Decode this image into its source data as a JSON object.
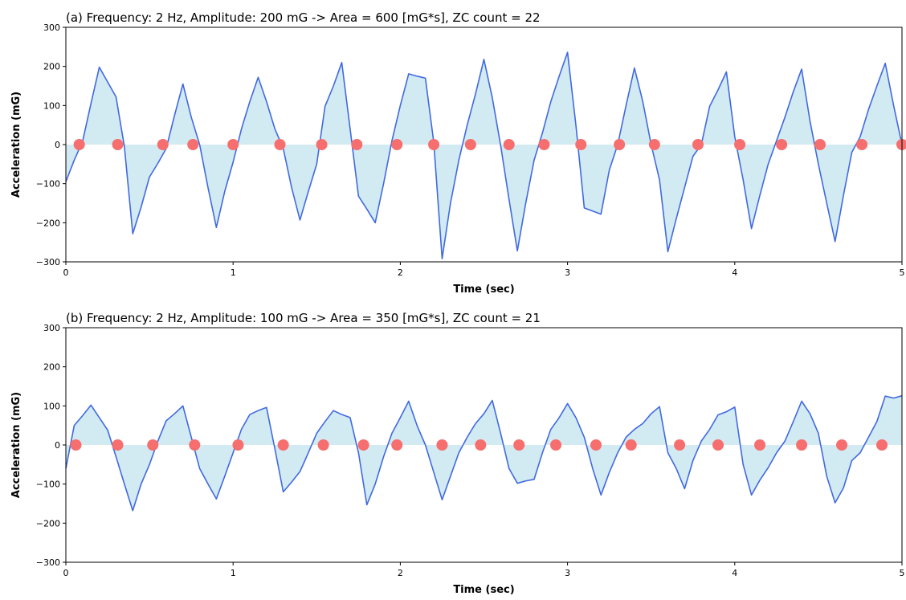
{
  "chart_data": [
    {
      "type": "line",
      "title": "(a) Frequency: 2 Hz, Amplitude: 200 mG -> Area = 600 [mG*s], ZC count = 22",
      "xlabel": "Time (sec)",
      "ylabel": "Acceleration (mG)",
      "xlim": [
        0,
        5
      ],
      "ylim": [
        -300,
        300
      ],
      "xticks": [
        "0",
        "1",
        "2",
        "3",
        "4",
        "5"
      ],
      "yticks": [
        "300",
        "200",
        "100",
        "0",
        "−100",
        "−200",
        "−300"
      ],
      "line_color": "#4169e1",
      "fill_color": "#add8e6",
      "marker_color": "#f76e6e",
      "x": [
        0,
        0.05,
        0.1,
        0.15,
        0.2,
        0.25,
        0.3,
        0.35,
        0.4,
        0.45,
        0.5,
        0.55,
        0.6,
        0.65,
        0.7,
        0.75,
        0.8,
        0.85,
        0.9,
        0.95,
        1.0,
        1.05,
        1.1,
        1.15,
        1.2,
        1.25,
        1.3,
        1.35,
        1.4,
        1.45,
        1.5,
        1.55,
        1.6,
        1.65,
        1.7,
        1.75,
        1.8,
        1.85,
        1.9,
        1.95,
        2.0,
        2.05,
        2.1,
        2.15,
        2.2,
        2.25,
        2.3,
        2.35,
        2.4,
        2.45,
        2.5,
        2.55,
        2.6,
        2.65,
        2.7,
        2.75,
        2.8,
        2.85,
        2.9,
        2.95,
        3.0,
        3.05,
        3.1,
        3.15,
        3.2,
        3.25,
        3.3,
        3.35,
        3.4,
        3.45,
        3.5,
        3.55,
        3.6,
        3.65,
        3.7,
        3.75,
        3.8,
        3.85,
        3.9,
        3.95,
        4.0,
        4.05,
        4.1,
        4.15,
        4.2,
        4.25,
        4.3,
        4.35,
        4.4,
        4.45,
        4.5,
        4.55,
        4.6,
        4.65,
        4.7,
        4.75,
        4.8,
        4.85,
        4.9,
        4.95,
        5.0
      ],
      "values": [
        -95,
        -40,
        8,
        105,
        198,
        160,
        122,
        -5,
        -228,
        -160,
        -83,
        -48,
        -10,
        75,
        155,
        70,
        0,
        -110,
        -212,
        -120,
        -45,
        40,
        110,
        172,
        110,
        40,
        -10,
        -110,
        -193,
        -120,
        -50,
        98,
        150,
        210,
        40,
        -132,
        -165,
        -200,
        -100,
        10,
        100,
        181,
        175,
        170,
        6,
        -292,
        -150,
        -40,
        50,
        130,
        218,
        120,
        -2,
        -140,
        -272,
        -150,
        -40,
        30,
        110,
        175,
        236,
        50,
        -162,
        -170,
        -178,
        -65,
        0,
        100,
        196,
        110,
        0,
        -90,
        -274,
        -190,
        -110,
        -30,
        0,
        98,
        140,
        186,
        20,
        -90,
        -215,
        -130,
        -50,
        10,
        70,
        135,
        193,
        60,
        -50,
        -150,
        -248,
        -130,
        -20,
        20,
        90,
        150,
        208,
        100,
        0
      ],
      "zero_crossings": [
        0.08,
        0.31,
        0.58,
        0.76,
        1.0,
        1.28,
        1.53,
        1.74,
        1.98,
        2.2,
        2.42,
        2.65,
        2.86,
        3.08,
        3.31,
        3.52,
        3.78,
        4.03,
        4.28,
        4.51,
        4.76,
        5.0
      ]
    },
    {
      "type": "line",
      "title": "(b) Frequency: 2 Hz, Amplitude: 100 mG -> Area = 350 [mG*s], ZC count = 21",
      "xlabel": "Time (sec)",
      "ylabel": "Acceleration (mG)",
      "xlim": [
        0,
        5
      ],
      "ylim": [
        -300,
        300
      ],
      "xticks": [
        "0",
        "1",
        "2",
        "3",
        "4",
        "5"
      ],
      "yticks": [
        "300",
        "200",
        "100",
        "0",
        "−100",
        "−200",
        "−300"
      ],
      "line_color": "#4169e1",
      "fill_color": "#add8e6",
      "marker_color": "#f76e6e",
      "x": [
        0,
        0.05,
        0.1,
        0.15,
        0.2,
        0.25,
        0.3,
        0.35,
        0.4,
        0.45,
        0.5,
        0.55,
        0.6,
        0.65,
        0.7,
        0.75,
        0.8,
        0.85,
        0.9,
        0.95,
        1.0,
        1.05,
        1.1,
        1.15,
        1.2,
        1.25,
        1.3,
        1.35,
        1.4,
        1.45,
        1.5,
        1.55,
        1.6,
        1.65,
        1.7,
        1.75,
        1.8,
        1.85,
        1.9,
        1.95,
        2.0,
        2.05,
        2.1,
        2.15,
        2.2,
        2.25,
        2.3,
        2.35,
        2.4,
        2.45,
        2.5,
        2.55,
        2.6,
        2.65,
        2.7,
        2.75,
        2.8,
        2.85,
        2.9,
        2.95,
        3.0,
        3.05,
        3.1,
        3.15,
        3.2,
        3.25,
        3.3,
        3.35,
        3.4,
        3.45,
        3.5,
        3.55,
        3.6,
        3.65,
        3.7,
        3.75,
        3.8,
        3.85,
        3.9,
        3.95,
        4.0,
        4.05,
        4.1,
        4.15,
        4.2,
        4.25,
        4.3,
        4.35,
        4.4,
        4.45,
        4.5,
        4.55,
        4.6,
        4.65,
        4.7,
        4.75,
        4.8,
        4.85,
        4.9,
        4.95,
        5.0
      ],
      "values": [
        -60,
        50,
        75,
        102,
        70,
        38,
        -30,
        -100,
        -168,
        -100,
        -50,
        10,
        62,
        80,
        100,
        20,
        -60,
        -100,
        -138,
        -80,
        -20,
        40,
        78,
        88,
        96,
        -10,
        -120,
        -95,
        -68,
        -20,
        30,
        60,
        88,
        78,
        70,
        -20,
        -153,
        -100,
        -30,
        30,
        70,
        112,
        50,
        0,
        -70,
        -140,
        -80,
        -20,
        20,
        55,
        80,
        114,
        30,
        -60,
        -98,
        -92,
        -88,
        -20,
        40,
        70,
        106,
        70,
        20,
        -60,
        -128,
        -70,
        -20,
        20,
        40,
        55,
        80,
        98,
        -20,
        -60,
        -112,
        -40,
        10,
        40,
        77,
        85,
        97,
        -50,
        -128,
        -90,
        -58,
        -20,
        10,
        60,
        112,
        80,
        30,
        -80,
        -148,
        -110,
        -40,
        -20,
        20,
        60,
        125,
        120,
        126
      ],
      "zero_crossings": [
        0.06,
        0.31,
        0.52,
        0.77,
        1.03,
        1.3,
        1.54,
        1.78,
        1.98,
        2.25,
        2.48,
        2.71,
        2.93,
        3.17,
        3.38,
        3.67,
        3.9,
        4.15,
        4.4,
        4.64,
        4.88
      ]
    }
  ]
}
